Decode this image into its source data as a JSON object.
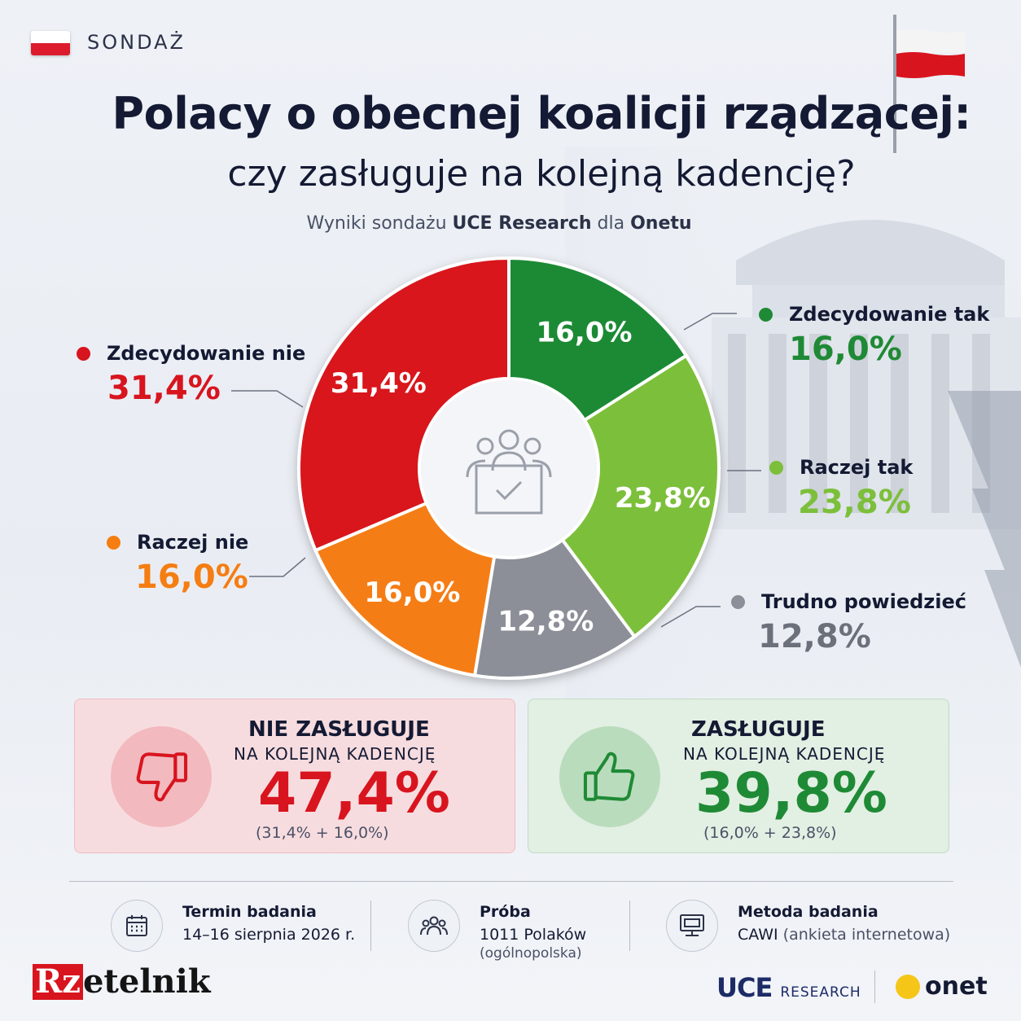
{
  "header": {
    "tag": "SONDAŻ",
    "title_line1": "Polacy o obecnej koalicji rządzącej:",
    "title_line2": "czy zasługuje na kolejną kadencję?",
    "subtitle_pre": "Wyniki sondażu ",
    "subtitle_src": "UCE Research",
    "subtitle_mid": " dla ",
    "subtitle_media": "Onetu"
  },
  "chart_data": {
    "type": "pie",
    "donut": true,
    "slices": [
      {
        "label": "Zdecydowanie tak",
        "value": 16.0,
        "text": "16,0%",
        "color": "#1f8a35"
      },
      {
        "label": "Raczej tak",
        "value": 23.8,
        "text": "23,8%",
        "color": "#7cbf3a"
      },
      {
        "label": "Trudno powiedzieć",
        "value": 12.8,
        "text": "12,8%",
        "color": "#8c8f97"
      },
      {
        "label": "Raczej nie",
        "value": 16.0,
        "text": "16,0%",
        "color": "#f57d12"
      },
      {
        "label": "Zdecydowanie nie",
        "value": 31.4,
        "text": "31,4%",
        "color": "#d8141e"
      }
    ]
  },
  "legend": {
    "zdecydowanie_tak": {
      "label": "Zdecydowanie tak",
      "pct": "16,0%",
      "color": "#1f8a35"
    },
    "raczej_tak": {
      "label": "Raczej tak",
      "pct": "23,8%",
      "color": "#7cbf3a"
    },
    "trudno": {
      "label": "Trudno powiedzieć",
      "pct": "12,8%",
      "color": "#8c8f97"
    },
    "raczej_nie": {
      "label": "Raczej nie",
      "pct": "16,0%",
      "color": "#f57d12"
    },
    "zdecydowanie_nie": {
      "label": "Zdecydowanie nie",
      "pct": "31,4%",
      "color": "#d8141e"
    }
  },
  "summary": {
    "negative": {
      "title": "NIE ZASŁUGUJE",
      "subtitle": "NA KOLEJNĄ KADENCJĘ",
      "value": "47,4%",
      "breakdown": "(31,4% + 16,0%)",
      "icon": "thumbs-down-icon",
      "color": "#d8141e"
    },
    "positive": {
      "title": "ZASŁUGUJE",
      "subtitle": "NA KOLEJNĄ KADENCJĘ",
      "value": "39,8%",
      "breakdown": "(16,0% + 23,8%)",
      "icon": "thumbs-up-icon",
      "color": "#1f8a35"
    }
  },
  "info": {
    "termin": {
      "label": "Termin badania",
      "value": "14–16 sierpnia 2026 r.",
      "icon": "calendar-icon"
    },
    "proba": {
      "label": "Próba",
      "value": "1011 Polaków",
      "note": "(ogólnopolska)",
      "icon": "people-icon"
    },
    "metoda": {
      "label": "Metoda badania",
      "value": "CAWI",
      "note": " (ankieta internetowa)",
      "icon": "computer-icon"
    }
  },
  "logos": {
    "rz_prefix": "Rz",
    "rz_rest": "etelnik",
    "uce": "UCE",
    "uce_sub": "RESEARCH",
    "onet": "onet"
  }
}
